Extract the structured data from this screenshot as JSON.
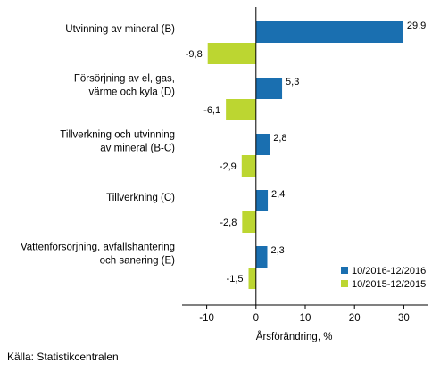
{
  "chart_data": {
    "type": "bar",
    "orientation": "horizontal",
    "categories": [
      [
        "Utvinning av mineral (B)"
      ],
      [
        "Försörjning av el, gas,",
        "värme och kyla (D)"
      ],
      [
        "Tillverkning och utvinning",
        "av mineral (B-C)"
      ],
      [
        "Tillverkning (C)"
      ],
      [
        "Vattenförsörjning, avfallshantering",
        "och sanering (E)"
      ]
    ],
    "series": [
      {
        "name": "10/2016-12/2016",
        "color": "#1a6fb0",
        "values": [
          29.9,
          5.3,
          2.8,
          2.4,
          2.3
        ],
        "labels": [
          "29,9",
          "5,3",
          "2,8",
          "2,4",
          "2,3"
        ]
      },
      {
        "name": "10/2015-12/2015",
        "color": "#bcd631",
        "values": [
          -9.8,
          -6.1,
          -2.9,
          -2.8,
          -1.5
        ],
        "labels": [
          "-9,8",
          "-6,1",
          "-2,9",
          "-2,8",
          "-1,5"
        ]
      }
    ],
    "xlim": [
      -15,
      35
    ],
    "xticks": [
      -10,
      0,
      10,
      20,
      30
    ],
    "xtick_labels": [
      "-10",
      "0",
      "10",
      "20",
      "30"
    ],
    "xlabel": "Årsförändring, %",
    "grid": false,
    "legend_position": "bottom-right"
  },
  "source": "Källa: Statistikcentralen"
}
